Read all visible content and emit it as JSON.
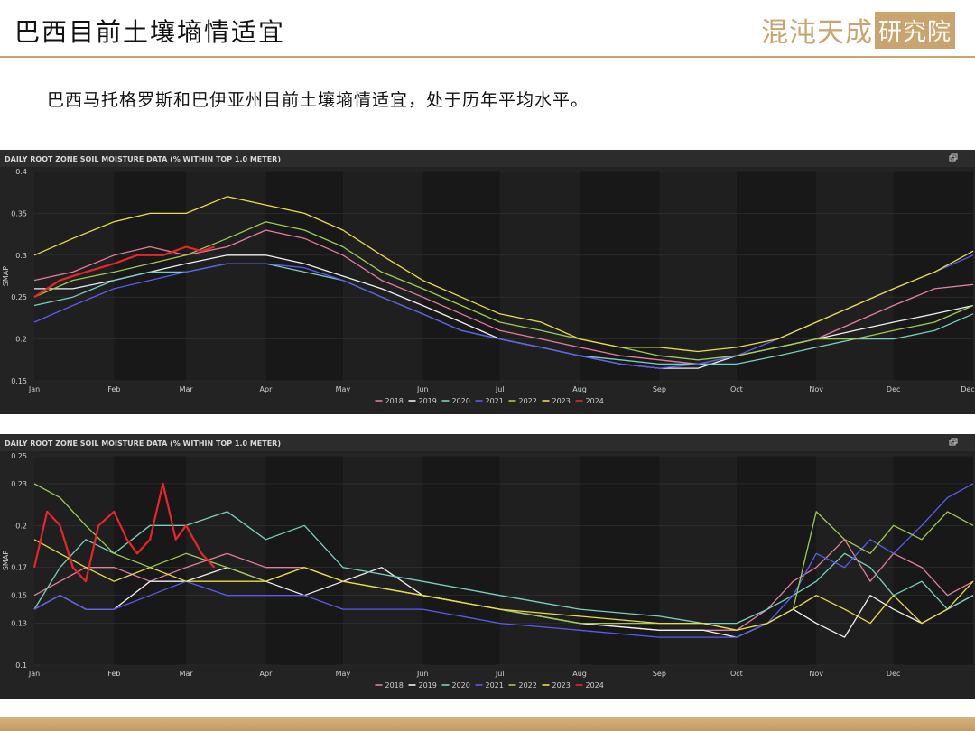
{
  "header": {
    "title": "巴西目前土壤墒情适宜",
    "logo_text": "混沌天成",
    "logo_box_text": "研究院"
  },
  "subtitle": "巴西马托格罗斯和巴伊亚州目前土壤墒情适宜，处于历年平均水平。",
  "colors": {
    "accent": "#c9a46e",
    "panel_bg": "#232323",
    "plot_bg": "#181818"
  },
  "chart_data": [
    {
      "type": "line",
      "title": "DAILY ROOT ZONE SOIL MOISTURE DATA (% WITHIN TOP 1.0 METER)",
      "ylabel": "SMAP",
      "xlabel": "",
      "ylim": [
        0.15,
        0.4
      ],
      "yticks": [
        0.4,
        0.35,
        0.3,
        0.25,
        0.2,
        0.15
      ],
      "xlim": [
        0,
        365
      ],
      "xticks": [
        {
          "label": "Jan",
          "x": 0
        },
        {
          "label": "Feb",
          "x": 31
        },
        {
          "label": "Mar",
          "x": 59
        },
        {
          "label": "Apr",
          "x": 90
        },
        {
          "label": "May",
          "x": 120
        },
        {
          "label": "Jun",
          "x": 151
        },
        {
          "label": "Jul",
          "x": 181
        },
        {
          "label": "Aug",
          "x": 212
        },
        {
          "label": "Sep",
          "x": 243
        },
        {
          "label": "Oct",
          "x": 273
        },
        {
          "label": "Nov",
          "x": 304
        },
        {
          "label": "Dec",
          "x": 334
        },
        {
          "label": "Dec",
          "x": 365
        }
      ],
      "grid": true,
      "legend_position": "bottom-center",
      "series": [
        {
          "name": "2018",
          "color": "#e07fa0",
          "x": [
            0,
            15,
            31,
            45,
            59,
            75,
            90,
            105,
            120,
            135,
            151,
            166,
            181,
            197,
            212,
            228,
            243,
            258,
            273,
            289,
            304,
            319,
            334,
            350,
            365
          ],
          "y": [
            0.27,
            0.28,
            0.3,
            0.31,
            0.3,
            0.31,
            0.33,
            0.32,
            0.3,
            0.27,
            0.25,
            0.23,
            0.21,
            0.2,
            0.19,
            0.18,
            0.175,
            0.17,
            0.18,
            0.19,
            0.2,
            0.22,
            0.24,
            0.26,
            0.265
          ]
        },
        {
          "name": "2019",
          "color": "#f0f0f0",
          "x": [
            0,
            15,
            31,
            45,
            59,
            75,
            90,
            105,
            120,
            135,
            151,
            166,
            181,
            197,
            212,
            228,
            243,
            258,
            273,
            289,
            304,
            319,
            334,
            350,
            365
          ],
          "y": [
            0.26,
            0.26,
            0.27,
            0.28,
            0.29,
            0.3,
            0.3,
            0.29,
            0.275,
            0.26,
            0.24,
            0.22,
            0.2,
            0.19,
            0.18,
            0.17,
            0.165,
            0.165,
            0.18,
            0.19,
            0.2,
            0.21,
            0.22,
            0.23,
            0.24
          ]
        },
        {
          "name": "2020",
          "color": "#7ad0c0",
          "x": [
            0,
            15,
            31,
            45,
            59,
            75,
            90,
            105,
            120,
            135,
            151,
            166,
            181,
            197,
            212,
            228,
            243,
            258,
            273,
            289,
            304,
            319,
            334,
            350,
            365
          ],
          "y": [
            0.24,
            0.25,
            0.27,
            0.28,
            0.28,
            0.29,
            0.29,
            0.28,
            0.27,
            0.25,
            0.23,
            0.21,
            0.2,
            0.19,
            0.18,
            0.175,
            0.17,
            0.17,
            0.17,
            0.18,
            0.19,
            0.2,
            0.2,
            0.21,
            0.23
          ]
        },
        {
          "name": "2021",
          "color": "#5a5cf0",
          "x": [
            0,
            15,
            31,
            45,
            59,
            75,
            90,
            105,
            120,
            135,
            151,
            166,
            181,
            197,
            212,
            228,
            243,
            258,
            273,
            289,
            304,
            319,
            334,
            350,
            365
          ],
          "y": [
            0.22,
            0.24,
            0.26,
            0.27,
            0.28,
            0.29,
            0.29,
            0.285,
            0.27,
            0.25,
            0.23,
            0.21,
            0.2,
            0.19,
            0.18,
            0.17,
            0.165,
            0.17,
            0.18,
            0.2,
            0.22,
            0.24,
            0.26,
            0.28,
            0.3
          ]
        },
        {
          "name": "2022",
          "color": "#9ccc55",
          "x": [
            0,
            15,
            31,
            45,
            59,
            75,
            90,
            105,
            120,
            135,
            151,
            166,
            181,
            197,
            212,
            228,
            243,
            258,
            273,
            289,
            304,
            319,
            334,
            350,
            365
          ],
          "y": [
            0.25,
            0.27,
            0.28,
            0.29,
            0.3,
            0.32,
            0.34,
            0.33,
            0.31,
            0.28,
            0.26,
            0.24,
            0.22,
            0.21,
            0.2,
            0.19,
            0.18,
            0.175,
            0.18,
            0.19,
            0.2,
            0.2,
            0.21,
            0.22,
            0.24
          ]
        },
        {
          "name": "2023",
          "color": "#e8dc48",
          "x": [
            0,
            15,
            31,
            45,
            59,
            75,
            90,
            105,
            120,
            135,
            151,
            166,
            181,
            197,
            212,
            228,
            243,
            258,
            273,
            289,
            304,
            319,
            334,
            350,
            365
          ],
          "y": [
            0.3,
            0.32,
            0.34,
            0.35,
            0.35,
            0.37,
            0.36,
            0.35,
            0.33,
            0.3,
            0.27,
            0.25,
            0.23,
            0.22,
            0.2,
            0.19,
            0.19,
            0.185,
            0.19,
            0.2,
            0.22,
            0.24,
            0.26,
            0.28,
            0.305
          ]
        },
        {
          "name": "2024",
          "color": "#e8262a",
          "x": [
            0,
            10,
            20,
            31,
            40,
            50,
            59,
            65,
            70
          ],
          "y": [
            0.25,
            0.27,
            0.28,
            0.29,
            0.3,
            0.3,
            0.31,
            0.305,
            0.31
          ]
        }
      ]
    },
    {
      "type": "line",
      "title": "DAILY ROOT ZONE SOIL MOISTURE DATA (% WITHIN TOP 1.0 METER)",
      "ylabel": "SMAP",
      "xlabel": "",
      "ylim": [
        0.1,
        0.25
      ],
      "yticks": [
        0.25,
        0.23,
        0.2,
        0.17,
        0.15,
        0.13,
        0.1
      ],
      "xlim": [
        0,
        365
      ],
      "xticks": [
        {
          "label": "Jan",
          "x": 0
        },
        {
          "label": "Feb",
          "x": 31
        },
        {
          "label": "Mar",
          "x": 59
        },
        {
          "label": "Apr",
          "x": 90
        },
        {
          "label": "May",
          "x": 120
        },
        {
          "label": "Jun",
          "x": 151
        },
        {
          "label": "Jul",
          "x": 181
        },
        {
          "label": "Aug",
          "x": 212
        },
        {
          "label": "Sep",
          "x": 243
        },
        {
          "label": "Oct",
          "x": 273
        },
        {
          "label": "Nov",
          "x": 304
        },
        {
          "label": "Dec",
          "x": 334
        }
      ],
      "grid": true,
      "legend_position": "bottom-center",
      "series": [
        {
          "name": "2018",
          "color": "#e07fa0",
          "x": [
            0,
            10,
            20,
            31,
            45,
            59,
            75,
            90,
            105,
            120,
            151,
            181,
            212,
            243,
            260,
            273,
            285,
            295,
            304,
            315,
            325,
            334,
            345,
            355,
            365
          ],
          "y": [
            0.15,
            0.16,
            0.17,
            0.17,
            0.16,
            0.17,
            0.18,
            0.17,
            0.17,
            0.16,
            0.15,
            0.14,
            0.13,
            0.125,
            0.125,
            0.125,
            0.14,
            0.16,
            0.17,
            0.19,
            0.16,
            0.18,
            0.17,
            0.15,
            0.16
          ]
        },
        {
          "name": "2019",
          "color": "#f0f0f0",
          "x": [
            0,
            10,
            20,
            31,
            45,
            59,
            75,
            90,
            105,
            120,
            135,
            151,
            181,
            212,
            243,
            260,
            273,
            285,
            295,
            304,
            315,
            325,
            334,
            345,
            355,
            365
          ],
          "y": [
            0.14,
            0.15,
            0.14,
            0.14,
            0.16,
            0.16,
            0.17,
            0.16,
            0.15,
            0.16,
            0.17,
            0.15,
            0.14,
            0.13,
            0.125,
            0.125,
            0.12,
            0.13,
            0.14,
            0.13,
            0.12,
            0.15,
            0.14,
            0.13,
            0.14,
            0.15
          ]
        },
        {
          "name": "2020",
          "color": "#7ad0c0",
          "x": [
            0,
            10,
            20,
            31,
            45,
            59,
            75,
            90,
            105,
            120,
            151,
            181,
            212,
            243,
            260,
            273,
            285,
            295,
            304,
            315,
            325,
            334,
            345,
            355,
            365
          ],
          "y": [
            0.14,
            0.17,
            0.19,
            0.18,
            0.2,
            0.2,
            0.21,
            0.19,
            0.2,
            0.17,
            0.16,
            0.15,
            0.14,
            0.135,
            0.13,
            0.13,
            0.14,
            0.15,
            0.16,
            0.18,
            0.17,
            0.15,
            0.16,
            0.14,
            0.15
          ]
        },
        {
          "name": "2021",
          "color": "#5a5cf0",
          "x": [
            0,
            10,
            20,
            31,
            45,
            59,
            75,
            90,
            105,
            120,
            151,
            181,
            212,
            243,
            260,
            273,
            285,
            295,
            304,
            315,
            325,
            334,
            345,
            355,
            365
          ],
          "y": [
            0.14,
            0.15,
            0.14,
            0.14,
            0.15,
            0.16,
            0.15,
            0.15,
            0.15,
            0.14,
            0.14,
            0.13,
            0.125,
            0.12,
            0.12,
            0.12,
            0.13,
            0.15,
            0.18,
            0.17,
            0.19,
            0.18,
            0.2,
            0.22,
            0.23
          ]
        },
        {
          "name": "2022",
          "color": "#9ccc55",
          "x": [
            0,
            10,
            20,
            31,
            45,
            59,
            75,
            90,
            105,
            120,
            151,
            181,
            212,
            243,
            260,
            273,
            285,
            295,
            304,
            315,
            325,
            334,
            345,
            355,
            365
          ],
          "y": [
            0.23,
            0.22,
            0.2,
            0.18,
            0.17,
            0.18,
            0.17,
            0.16,
            0.17,
            0.16,
            0.15,
            0.14,
            0.13,
            0.13,
            0.13,
            0.125,
            0.13,
            0.14,
            0.21,
            0.19,
            0.18,
            0.2,
            0.19,
            0.21,
            0.2
          ]
        },
        {
          "name": "2023",
          "color": "#e8dc48",
          "x": [
            0,
            10,
            20,
            31,
            45,
            59,
            75,
            90,
            105,
            120,
            151,
            181,
            212,
            243,
            260,
            273,
            285,
            295,
            304,
            315,
            325,
            334,
            345,
            355,
            365
          ],
          "y": [
            0.19,
            0.18,
            0.17,
            0.16,
            0.17,
            0.16,
            0.16,
            0.16,
            0.17,
            0.16,
            0.15,
            0.14,
            0.135,
            0.13,
            0.13,
            0.125,
            0.13,
            0.14,
            0.15,
            0.14,
            0.13,
            0.15,
            0.13,
            0.14,
            0.16
          ]
        },
        {
          "name": "2024",
          "color": "#e8262a",
          "x": [
            0,
            5,
            10,
            15,
            20,
            25,
            31,
            36,
            40,
            45,
            50,
            55,
            59,
            65,
            70
          ],
          "y": [
            0.17,
            0.21,
            0.2,
            0.17,
            0.16,
            0.2,
            0.21,
            0.19,
            0.18,
            0.19,
            0.23,
            0.19,
            0.2,
            0.18,
            0.17
          ]
        }
      ]
    }
  ]
}
